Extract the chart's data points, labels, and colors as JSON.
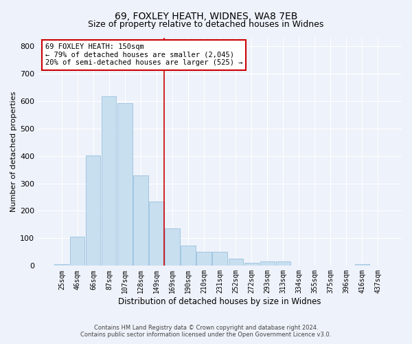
{
  "title": "69, FOXLEY HEATH, WIDNES, WA8 7EB",
  "subtitle": "Size of property relative to detached houses in Widnes",
  "xlabel": "Distribution of detached houses by size in Widnes",
  "ylabel": "Number of detached properties",
  "footnote1": "Contains HM Land Registry data © Crown copyright and database right 2024.",
  "footnote2": "Contains public sector information licensed under the Open Government Licence v3.0.",
  "bin_labels": [
    "25sqm",
    "46sqm",
    "66sqm",
    "87sqm",
    "107sqm",
    "128sqm",
    "149sqm",
    "169sqm",
    "190sqm",
    "210sqm",
    "231sqm",
    "252sqm",
    "272sqm",
    "293sqm",
    "313sqm",
    "334sqm",
    "355sqm",
    "375sqm",
    "396sqm",
    "416sqm",
    "437sqm"
  ],
  "bar_heights": [
    5,
    107,
    401,
    617,
    592,
    328,
    235,
    137,
    73,
    51,
    51,
    25,
    12,
    15,
    15,
    0,
    0,
    0,
    0,
    5,
    0
  ],
  "bar_color": "#c8dff0",
  "bar_edge_color": "#8ab8d8",
  "vline_color": "#cc0000",
  "annotation_line1": "69 FOXLEY HEATH: 150sqm",
  "annotation_line2": "← 79% of detached houses are smaller (2,045)",
  "annotation_line3": "20% of semi-detached houses are larger (525) →",
  "annotation_box_color": "white",
  "annotation_box_edge_color": "#cc0000",
  "ylim": [
    0,
    830
  ],
  "yticks": [
    0,
    100,
    200,
    300,
    400,
    500,
    600,
    700,
    800
  ],
  "background_color": "#eef2fa",
  "plot_background_color": "#eef2fa",
  "grid_color": "white",
  "title_fontsize": 10,
  "subtitle_fontsize": 9,
  "tick_label_fontsize": 7,
  "ylabel_fontsize": 8,
  "xlabel_fontsize": 8.5,
  "footnote_fontsize": 6,
  "annotation_fontsize": 7.5
}
